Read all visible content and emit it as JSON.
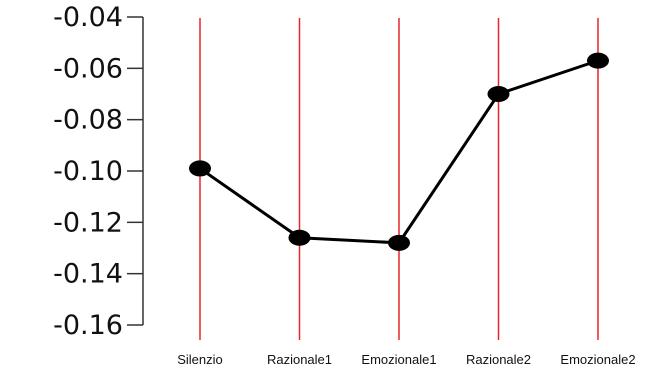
{
  "chart_data": {
    "type": "line",
    "title": "",
    "xlabel": "",
    "ylabel": "",
    "categories": [
      "Silenzio",
      "Razionale1",
      "Emozionale1",
      "Razionale2",
      "Emozionale2"
    ],
    "series": [
      {
        "values": [
          -0.099,
          -0.126,
          -0.128,
          -0.07,
          -0.057
        ]
      }
    ],
    "ylim": [
      -0.16,
      -0.04
    ],
    "yticks": [
      "-0.04",
      "-0.06",
      "-0.08",
      "-0.10",
      "-0.12",
      "-0.14",
      "-0.16"
    ],
    "ytick_values": [
      -0.04,
      -0.06,
      -0.08,
      -0.1,
      -0.12,
      -0.14,
      -0.16
    ],
    "vertical_lines_at_categories": true,
    "grid": false,
    "colors": {
      "line": "#000000",
      "markers": "#000000",
      "vertical_lines": "#e8262b",
      "axis": "#333333"
    }
  }
}
